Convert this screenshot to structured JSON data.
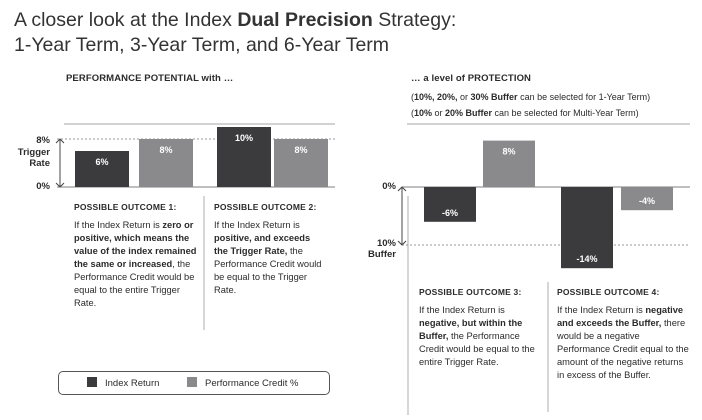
{
  "title": {
    "line1_prefix": "A closer look at the Index ",
    "line1_bold": "Dual Precision",
    "line1_suffix": " Strategy:",
    "line2": "1-Year Term, 3-Year Term, and 6-Year Term"
  },
  "left_heading": "PERFORMANCE POTENTIAL with …",
  "right_heading": "… a level of PROTECTION",
  "notes": {
    "line1": {
      "p1": "(",
      "b1": "10%, 20%,",
      "p2": " or ",
      "b2": "30% Buffer",
      "p3": " can be selected for 1-Year Term)"
    },
    "line2": {
      "p1": "(",
      "b1": "10%",
      "p2": " or ",
      "b2": "20% Buffer",
      "p3": " can be selected for Multi-Year Term)"
    }
  },
  "axis_labels": {
    "left_8_value": "8%",
    "left_8_name_1": "Trigger",
    "left_8_name_2": "Rate",
    "left_0": "0%",
    "right_0": "0%",
    "right_10_value": "10%",
    "right_10_name": "Buffer"
  },
  "outcomes": [
    {
      "heading": "POSSIBLE OUTCOME 1:",
      "parts": [
        {
          "t": "If the Index Return is ",
          "b": false
        },
        {
          "t": "zero or positive, which means the value of the index remained the same or increased",
          "b": true
        },
        {
          "t": ", the Performance Credit would be equal to the entire Trigger Rate.",
          "b": false
        }
      ]
    },
    {
      "heading": "POSSIBLE OUTCOME 2:",
      "parts": [
        {
          "t": "If the Index Return is ",
          "b": false
        },
        {
          "t": "positive, and exceeds the Trigger Rate,",
          "b": true
        },
        {
          "t": " the Performance Credit would be equal to the Trigger Rate.",
          "b": false
        }
      ]
    },
    {
      "heading": "POSSIBLE OUTCOME 3:",
      "parts": [
        {
          "t": "If the Index Return is ",
          "b": false
        },
        {
          "t": "negative, but within the Buffer,",
          "b": true
        },
        {
          "t": " the Performance Credit would be equal to the entire Trigger Rate.",
          "b": false
        }
      ]
    },
    {
      "heading": "POSSIBLE OUTCOME 4:",
      "parts": [
        {
          "t": "If the Index Return is ",
          "b": false
        },
        {
          "t": "negative and exceeds the Buffer,",
          "b": true
        },
        {
          "t": " there would be a negative Performance Credit equal to the amount of the negative returns in excess of the Buffer.",
          "b": false
        }
      ]
    }
  ],
  "legend": [
    {
      "label": "Index Return",
      "color": "#3b3b3d",
      "icon": "square-swatch-dark"
    },
    {
      "label": "Performance Credit %",
      "color": "#8a8a8c",
      "icon": "square-swatch-gray"
    }
  ],
  "chart_data": {
    "type": "bar",
    "categories": [
      "Outcome 1",
      "Outcome 2",
      "Outcome 3",
      "Outcome 4"
    ],
    "series": [
      {
        "name": "Index Return",
        "color": "#3b3b3d",
        "values": [
          6,
          10,
          -6,
          -14
        ],
        "labels": [
          "6%",
          "10%",
          "-6%",
          "-14%"
        ]
      },
      {
        "name": "Performance Credit %",
        "color": "#8a8a8c",
        "values": [
          8,
          8,
          8,
          -4
        ],
        "labels": [
          "8%",
          "8%",
          "8%",
          "-4%"
        ]
      }
    ],
    "reference_lines": [
      {
        "value": 8,
        "style": "dashed",
        "panel": "left"
      },
      {
        "value": -10,
        "style": "dashed",
        "panel": "right"
      }
    ],
    "ylabel": "",
    "ylim": [
      -15,
      10
    ]
  }
}
